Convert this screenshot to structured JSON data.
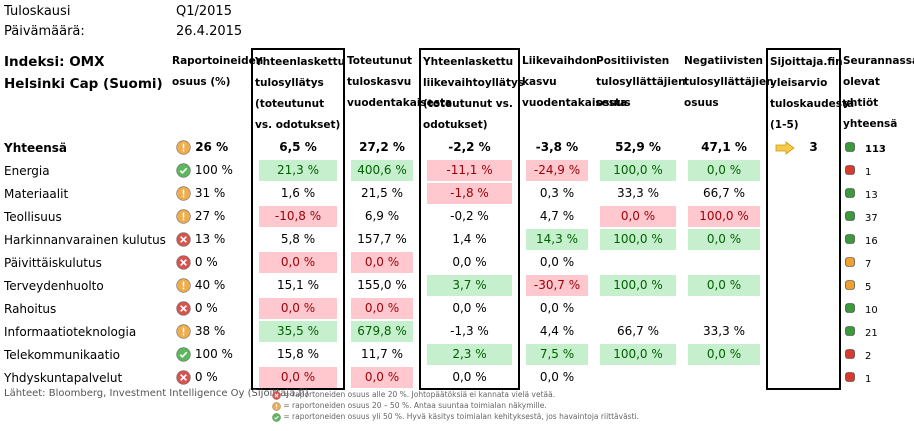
{
  "meta": [
    {
      "label": "Tuloskausi",
      "value": "Q1/2015"
    },
    {
      "label": "Päivämäärä:",
      "value": "26.4.2015"
    }
  ],
  "header": {
    "index": "Indeksi: OMX Helsinki Cap (Suomi)",
    "columns": [
      "Raportoineiden osuus (%)",
      "Yhteenlaskettu tulosyllätys (toteutunut vs. odotukset)",
      "Toteutunut tuloskasvu vuodentakaisesta",
      "Yhteenlaskettu liikevaihtoyllätys (toteutunut vs. odotukset)",
      "Liikevaihdon kasvu vuodentakaisesta",
      "Positiivisten tulosyllättäjien osuus",
      "Negatiivisten tulosyllättäjien osuus",
      "Sijoittaja.fin yleisarvio tuloskaudesta (1-5)",
      "Seurannassa olevat yhtiöt yhteensä"
    ],
    "boxed_columns": [
      1,
      3,
      7
    ]
  },
  "rows": [
    {
      "name": "Yhteensä",
      "status": "warn",
      "share": "26 %",
      "values": [
        "6,5 %",
        "27,2 %",
        "-2,2 %",
        "-3,8 %",
        "52,9 %",
        "47,1 %"
      ],
      "highlight": [
        null,
        null,
        null,
        null,
        null,
        null
      ],
      "rating": "3",
      "dot": "green",
      "count": "113",
      "bold": true
    },
    {
      "name": "Energia",
      "status": "ok",
      "share": "100 %",
      "values": [
        "21,3 %",
        "400,6 %",
        "-11,1 %",
        "-24,9 %",
        "100,0 %",
        "0,0 %"
      ],
      "highlight": [
        "green",
        "green",
        "red",
        "red",
        "green",
        "green"
      ],
      "rating": null,
      "dot": "red",
      "count": "1",
      "bold": false
    },
    {
      "name": "Materiaalit",
      "status": "warn",
      "share": "31 %",
      "values": [
        "1,6 %",
        "21,5 %",
        "-1,8 %",
        "0,3 %",
        "33,3 %",
        "66,7 %"
      ],
      "highlight": [
        null,
        null,
        "red",
        null,
        null,
        null
      ],
      "rating": null,
      "dot": "green",
      "count": "13",
      "bold": false
    },
    {
      "name": "Teollisuus",
      "status": "warn",
      "share": "27 %",
      "values": [
        "-10,8 %",
        "6,9 %",
        "-0,2 %",
        "4,7 %",
        "0,0 %",
        "100,0 %"
      ],
      "highlight": [
        "red",
        null,
        null,
        null,
        "red",
        "red"
      ],
      "rating": null,
      "dot": "green",
      "count": "37",
      "bold": false
    },
    {
      "name": "Harkinnanvarainen kulutus",
      "status": "bad",
      "share": "13 %",
      "values": [
        "5,8 %",
        "157,7 %",
        "1,4 %",
        "14,3 %",
        "100,0 %",
        "0,0 %"
      ],
      "highlight": [
        null,
        null,
        null,
        "green",
        "green",
        "green"
      ],
      "rating": null,
      "dot": "green",
      "count": "16",
      "bold": false
    },
    {
      "name": "Päivittäiskulutus",
      "status": "bad",
      "share": "0 %",
      "values": [
        "0,0 %",
        "0,0 %",
        "0,0 %",
        "0,0 %",
        null,
        null
      ],
      "highlight": [
        "red",
        "red",
        null,
        null,
        null,
        null
      ],
      "rating": null,
      "dot": "orange",
      "count": "7",
      "bold": false
    },
    {
      "name": "Terveydenhuolto",
      "status": "warn",
      "share": "40 %",
      "values": [
        "15,1 %",
        "155,0 %",
        "3,7 %",
        "-30,7 %",
        "100,0 %",
        "0,0 %"
      ],
      "highlight": [
        null,
        null,
        "green",
        "red",
        "green",
        "green"
      ],
      "rating": null,
      "dot": "orange",
      "count": "5",
      "bold": false
    },
    {
      "name": "Rahoitus",
      "status": "bad",
      "share": "0 %",
      "values": [
        "0,0 %",
        "0,0 %",
        "0,0 %",
        "0,0 %",
        null,
        null
      ],
      "highlight": [
        "red",
        "red",
        null,
        null,
        null,
        null
      ],
      "rating": null,
      "dot": "green",
      "count": "10",
      "bold": false
    },
    {
      "name": "Informaatioteknologia",
      "status": "warn",
      "share": "38 %",
      "values": [
        "35,5 %",
        "679,8 %",
        "-1,3 %",
        "4,4 %",
        "66,7 %",
        "33,3 %"
      ],
      "highlight": [
        "green",
        "green",
        null,
        null,
        null,
        null
      ],
      "rating": null,
      "dot": "green",
      "count": "21",
      "bold": false
    },
    {
      "name": "Telekommunikaatio",
      "status": "ok",
      "share": "100 %",
      "values": [
        "15,8 %",
        "11,7 %",
        "2,3 %",
        "7,5 %",
        "100,0 %",
        "0,0 %"
      ],
      "highlight": [
        null,
        null,
        "green",
        "green",
        "green",
        "green"
      ],
      "rating": null,
      "dot": "red",
      "count": "2",
      "bold": false
    },
    {
      "name": "Yhdyskuntapalvelut",
      "status": "bad",
      "share": "0 %",
      "values": [
        "0,0 %",
        "0,0 %",
        "0,0 %",
        "0,0 %",
        null,
        null
      ],
      "highlight": [
        "red",
        "red",
        null,
        null,
        null,
        null
      ],
      "rating": null,
      "dot": "red",
      "count": "1",
      "bold": false
    }
  ],
  "footer": {
    "source": "Lähteet: Bloomberg, Investment Intelligence Oy (Sijoittaja.fi)",
    "legend": [
      {
        "status": "bad",
        "text": "= raportoneiden osuus alle 20 %. Johtopäätöksiä ei kannata vielä vetää."
      },
      {
        "status": "warn",
        "text": "= raportoneiden osuus 20 – 50 %. Antaa suuntaa toimialan näkymille."
      },
      {
        "status": "ok",
        "text": "= raportoneiden osuus yli 50 %. Hyvä käsitys toimialan kehityksestä, jos havaintoja riittävästi."
      }
    ]
  }
}
